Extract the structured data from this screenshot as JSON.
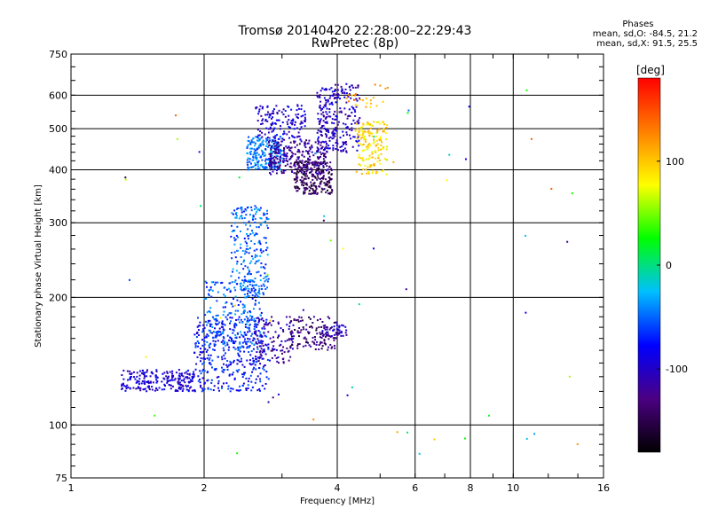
{
  "chart_data": {
    "type": "scatter",
    "title": "Tromsø 20140420 22:28:00–22:29:43",
    "subtitle": "RwPretec (8p)",
    "xlabel": "Frequency [MHz]",
    "ylabel": "Stationary phase Virtual Height [km]",
    "x_scale": "log",
    "y_scale": "log",
    "xlim": [
      1,
      16
    ],
    "ylim": [
      75,
      750
    ],
    "x_ticks": [
      1,
      2,
      4,
      6,
      8,
      10,
      16
    ],
    "y_ticks": [
      75,
      100,
      200,
      300,
      400,
      500,
      600,
      750
    ],
    "grid_x": [
      2,
      4,
      6,
      8,
      10
    ],
    "grid_y": [
      100,
      200,
      300,
      400,
      500,
      600
    ],
    "grid": true,
    "colorbar": {
      "label": "[deg]",
      "range": [
        -180,
        180
      ],
      "ticks": [
        100,
        0,
        -100
      ],
      "colors": [
        "#000000",
        "#4b0082",
        "#0000ff",
        "#00bfff",
        "#00ff00",
        "#ffff00",
        "#ff8000",
        "#ff0000"
      ]
    },
    "stats": {
      "title": "Phases",
      "line1": "mean, sd,O: -84.5, 21.2",
      "line2": "mean, sd,X:  91.5, 25.5"
    },
    "clusters": [
      {
        "f": [
          1.3,
          1.9
        ],
        "h": [
          120,
          135
        ],
        "phase": -95,
        "n": 220
      },
      {
        "f": [
          1.9,
          2.8
        ],
        "h": [
          120,
          180
        ],
        "phase": -75,
        "n": 380
      },
      {
        "f": [
          2.0,
          2.7
        ],
        "h": [
          150,
          220
        ],
        "phase": -55,
        "n": 220
      },
      {
        "f": [
          2.3,
          2.8
        ],
        "h": [
          200,
          330
        ],
        "phase": -50,
        "n": 230
      },
      {
        "f": [
          2.6,
          3.2
        ],
        "h": [
          140,
          180
        ],
        "phase": -115,
        "n": 110
      },
      {
        "f": [
          3.1,
          4.0
        ],
        "h": [
          150,
          180
        ],
        "phase": -135,
        "n": 120
      },
      {
        "f": [
          3.7,
          4.2
        ],
        "h": [
          162,
          172
        ],
        "phase": -105,
        "n": 45
      },
      {
        "f": [
          2.5,
          3.0
        ],
        "h": [
          400,
          480
        ],
        "phase": -45,
        "n": 220
      },
      {
        "f": [
          2.8,
          3.8
        ],
        "h": [
          390,
          470
        ],
        "phase": -120,
        "n": 260
      },
      {
        "f": [
          3.2,
          3.9
        ],
        "h": [
          350,
          420
        ],
        "phase": -145,
        "n": 230
      },
      {
        "f": [
          2.6,
          3.4
        ],
        "h": [
          470,
          570
        ],
        "phase": -95,
        "n": 140
      },
      {
        "f": [
          3.6,
          4.5
        ],
        "h": [
          440,
          640
        ],
        "phase": -100,
        "n": 260
      },
      {
        "f": [
          4.4,
          5.2
        ],
        "h": [
          390,
          520
        ],
        "phase": 90,
        "n": 150
      },
      {
        "f": [
          4.2,
          5.2
        ],
        "h": [
          560,
          640
        ],
        "phase": 110,
        "n": 25
      },
      {
        "f": [
          1.2,
          14.0
        ],
        "h": [
          85,
          620
        ],
        "phase": 0,
        "n": 60
      }
    ]
  }
}
